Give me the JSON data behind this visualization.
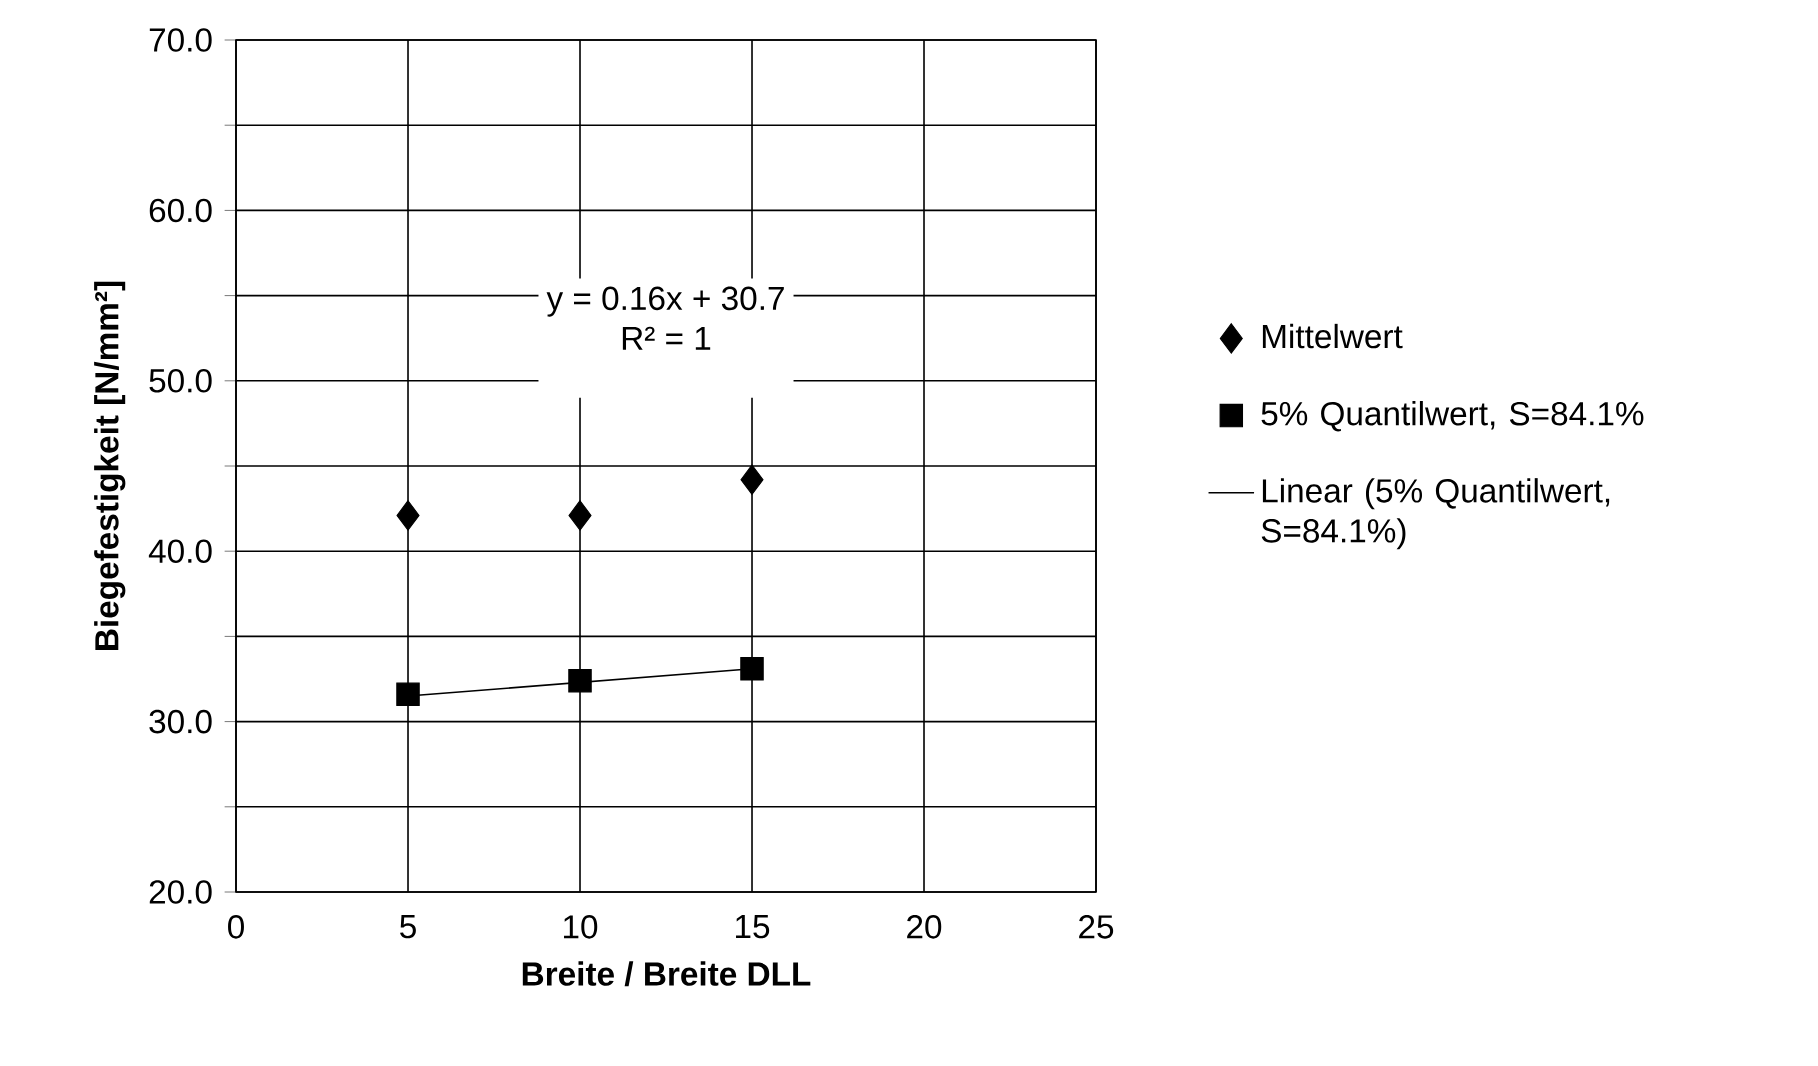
{
  "chart_data": {
    "type": "scatter",
    "xlabel": "Breite / Breite DLL",
    "ylabel": "Biegefestigkeit [N/mm²]",
    "x": [
      5,
      10,
      15
    ],
    "series": [
      {
        "name": "Mittelwert",
        "color": "#000000",
        "marker": "diamond",
        "values": [
          42.1,
          42.1,
          44.2
        ]
      },
      {
        "name": "5% Quantilwert, S=84.1%",
        "color": "#000000",
        "marker": "square",
        "values": [
          31.6,
          32.4,
          33.1
        ]
      },
      {
        "name": "Linear (5% Quantilwert, S=84.1%)",
        "type": "line",
        "color": "#000000",
        "marker": "none",
        "x": [
          5,
          15
        ],
        "values": [
          31.5,
          33.1
        ]
      }
    ],
    "xlim": [
      0,
      25
    ],
    "xticks": [
      0,
      5,
      10,
      15,
      20,
      25
    ],
    "ylim": [
      20,
      70
    ],
    "yticks": [
      {
        "value": 20,
        "label": "20.0"
      },
      {
        "value": 25,
        "label": null
      },
      {
        "value": 30,
        "label": "30.0"
      },
      {
        "value": 35,
        "label": null
      },
      {
        "value": 40,
        "label": "40.0"
      },
      {
        "value": 45,
        "label": null
      },
      {
        "value": 50,
        "label": "50.0"
      },
      {
        "value": 55,
        "label": null
      },
      {
        "value": 60,
        "label": "60.0"
      },
      {
        "value": 65,
        "label": null
      },
      {
        "value": 70,
        "label": "70.0"
      }
    ],
    "annotations": [
      "y = 0.16x + 30.7",
      "R² = 1"
    ],
    "grid": true,
    "legend": "right"
  }
}
